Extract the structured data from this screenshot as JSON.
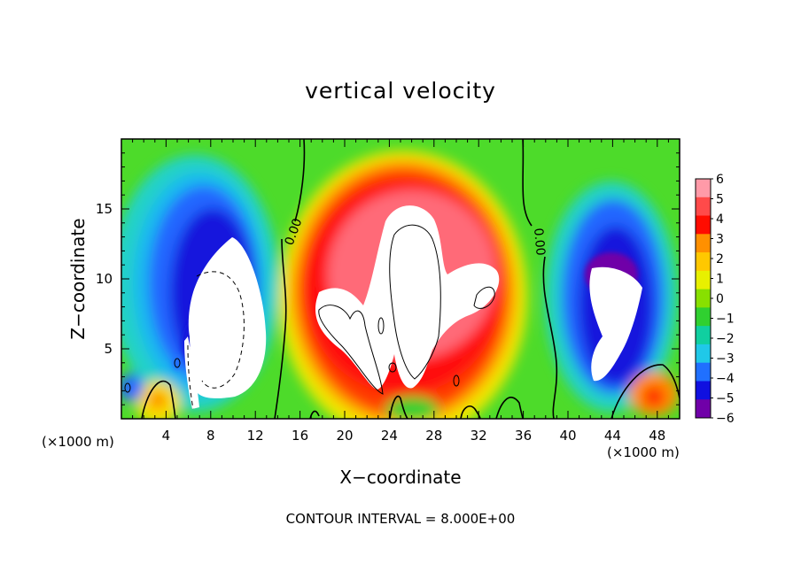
{
  "chart_data": {
    "type": "heatmap",
    "title": "vertical velocity",
    "xlabel": "X−coordinate",
    "ylabel": "Z−coordinate",
    "x_unit_label": "(×1000 m)",
    "xlim": [
      0,
      50
    ],
    "ylim": [
      0,
      20
    ],
    "x_ticks": [
      4,
      8,
      12,
      16,
      20,
      24,
      28,
      32,
      36,
      40,
      44,
      48
    ],
    "y_ticks": [
      5,
      10,
      15
    ],
    "colorbar": {
      "labels": [
        "6",
        "5",
        "4",
        "3",
        "2",
        "1",
        "0",
        "−1",
        "−2",
        "−3",
        "−4",
        "−5",
        "−6"
      ],
      "colors": [
        "#ff9aa8",
        "#ff4a4a",
        "#ff0c00",
        "#ff9000",
        "#ffc800",
        "#e8f000",
        "#88e000",
        "#30d030",
        "#10cfa0",
        "#20c8e8",
        "#2070ff",
        "#1010e0",
        "#7000a8"
      ]
    },
    "contour_labels": [
      "0.00",
      "0.00"
    ],
    "contour_interval_text": "CONTOUR INTERVAL =  8.000E+00",
    "features": [
      {
        "name": "updraft-core",
        "x": 27,
        "z": 10,
        "sign": "positive"
      },
      {
        "name": "downdraft-left",
        "x": 8,
        "z": 10,
        "sign": "negative"
      },
      {
        "name": "downdraft-right",
        "x": 44,
        "z": 8,
        "sign": "negative"
      }
    ]
  }
}
